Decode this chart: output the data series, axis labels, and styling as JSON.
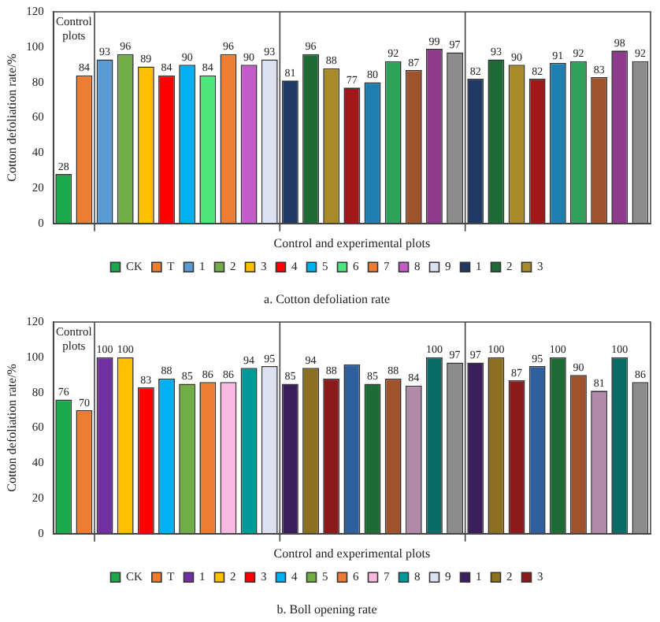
{
  "chart_data": [
    {
      "type": "bar",
      "title": "a. Cotton defoliation rate",
      "xlabel": "Control and experimental plots",
      "ylabel": "Cotton defoliation rate/%",
      "annotations": [
        "Control plots"
      ],
      "categories": [
        null,
        null,
        null,
        null,
        null,
        null,
        null,
        null,
        null,
        null,
        null,
        null,
        null,
        null,
        null,
        null,
        null,
        null,
        null,
        null,
        null,
        null,
        null,
        null,
        null,
        null,
        null,
        null,
        null
      ],
      "ylim": [
        0,
        120
      ],
      "yticks": [
        0,
        20,
        40,
        60,
        80,
        100,
        120
      ],
      "grid": false,
      "legend": "bottom",
      "data_labels": true,
      "series": [
        {
          "name": "CK",
          "color": "#1aa84a",
          "values": [
            28,
            null,
            null,
            null,
            null,
            null,
            null,
            null,
            null,
            null,
            null,
            null,
            null,
            null,
            null,
            null,
            null,
            null,
            null,
            null,
            null,
            null,
            null,
            null,
            null,
            null,
            null,
            null,
            null
          ]
        },
        {
          "name": "T",
          "color": "#ed7d31",
          "values": [
            null,
            84,
            null,
            null,
            null,
            null,
            null,
            null,
            null,
            null,
            null,
            null,
            null,
            null,
            null,
            null,
            null,
            null,
            null,
            null,
            null,
            null,
            null,
            null,
            null,
            null,
            null,
            null,
            null
          ]
        },
        {
          "name": "1",
          "color": "#5b9bd5",
          "values": [
            null,
            null,
            93,
            null,
            null,
            null,
            null,
            null,
            null,
            null,
            null,
            null,
            null,
            null,
            null,
            null,
            null,
            null,
            null,
            null,
            null,
            null,
            null,
            null,
            null,
            null,
            null,
            null,
            null
          ]
        },
        {
          "name": "2",
          "color": "#70ad47",
          "values": [
            null,
            null,
            null,
            96,
            null,
            null,
            null,
            null,
            null,
            null,
            null,
            null,
            null,
            null,
            null,
            null,
            null,
            null,
            null,
            null,
            null,
            null,
            null,
            null,
            null,
            null,
            null,
            null,
            null
          ]
        },
        {
          "name": "3",
          "color": "#ffc000",
          "values": [
            null,
            null,
            null,
            null,
            89,
            null,
            null,
            null,
            null,
            null,
            null,
            null,
            null,
            null,
            null,
            null,
            null,
            null,
            null,
            null,
            null,
            null,
            null,
            null,
            null,
            null,
            null,
            null,
            null
          ]
        },
        {
          "name": "4",
          "color": "#ff0000",
          "values": [
            null,
            null,
            null,
            null,
            null,
            84,
            null,
            null,
            null,
            null,
            null,
            null,
            null,
            null,
            null,
            null,
            null,
            null,
            null,
            null,
            null,
            null,
            null,
            null,
            null,
            null,
            null,
            null,
            null
          ]
        },
        {
          "name": "5",
          "color": "#00b0f0",
          "values": [
            null,
            null,
            null,
            null,
            null,
            null,
            90,
            null,
            null,
            null,
            null,
            null,
            null,
            null,
            null,
            null,
            null,
            null,
            null,
            null,
            null,
            null,
            null,
            null,
            null,
            null,
            null,
            null,
            null
          ]
        },
        {
          "name": "6",
          "color": "#4ce67a",
          "values": [
            null,
            null,
            null,
            null,
            null,
            null,
            null,
            84,
            null,
            null,
            null,
            null,
            null,
            null,
            null,
            null,
            null,
            null,
            null,
            null,
            null,
            null,
            null,
            null,
            null,
            null,
            null,
            null,
            null
          ]
        },
        {
          "name": "7",
          "color": "#ed7d31",
          "values": [
            null,
            null,
            null,
            null,
            null,
            null,
            null,
            null,
            96,
            null,
            null,
            null,
            null,
            null,
            null,
            null,
            null,
            null,
            null,
            null,
            null,
            null,
            null,
            null,
            null,
            null,
            null,
            null,
            null
          ]
        },
        {
          "name": "8",
          "color": "#c55ac9",
          "values": [
            null,
            null,
            null,
            null,
            null,
            null,
            null,
            null,
            null,
            90,
            null,
            null,
            null,
            null,
            null,
            null,
            null,
            null,
            null,
            null,
            null,
            null,
            null,
            null,
            null,
            null,
            null,
            null,
            null
          ]
        },
        {
          "name": "9",
          "color": "#dde0f0",
          "values": [
            null,
            null,
            null,
            null,
            null,
            null,
            null,
            null,
            null,
            null,
            93,
            null,
            null,
            null,
            null,
            null,
            null,
            null,
            null,
            null,
            null,
            null,
            null,
            null,
            null,
            null,
            null,
            null,
            null
          ]
        },
        {
          "name": "1",
          "color": "#1f3864",
          "values": [
            null,
            null,
            null,
            null,
            null,
            null,
            null,
            null,
            null,
            null,
            null,
            81,
            null,
            null,
            null,
            null,
            null,
            null,
            null,
            null,
            82,
            null,
            null,
            null,
            null,
            null,
            null,
            null,
            null
          ]
        },
        {
          "name": "2",
          "color": "#1e6b35",
          "values": [
            null,
            null,
            null,
            null,
            null,
            null,
            null,
            null,
            null,
            null,
            null,
            null,
            96,
            null,
            null,
            null,
            null,
            null,
            null,
            null,
            null,
            93,
            null,
            null,
            null,
            null,
            null,
            null,
            null
          ]
        },
        {
          "name": "3",
          "color": "#a88a28",
          "values": [
            null,
            null,
            null,
            null,
            null,
            null,
            null,
            null,
            null,
            null,
            null,
            null,
            null,
            88,
            null,
            null,
            null,
            null,
            null,
            null,
            null,
            null,
            90,
            null,
            null,
            null,
            null,
            null,
            null
          ]
        },
        {
          "color": "#a01818",
          "values": [
            null,
            null,
            null,
            null,
            null,
            null,
            null,
            null,
            null,
            null,
            null,
            null,
            null,
            null,
            77,
            null,
            null,
            null,
            null,
            null,
            null,
            null,
            null,
            82,
            null,
            null,
            null,
            null,
            null
          ]
        },
        {
          "color": "#1f7fb0",
          "values": [
            null,
            null,
            null,
            null,
            null,
            null,
            null,
            null,
            null,
            null,
            null,
            null,
            null,
            null,
            null,
            80,
            null,
            null,
            null,
            null,
            null,
            null,
            null,
            null,
            91,
            null,
            null,
            null,
            null
          ]
        },
        {
          "color": "#2ea25a",
          "values": [
            null,
            null,
            null,
            null,
            null,
            null,
            null,
            null,
            null,
            null,
            null,
            null,
            null,
            null,
            null,
            null,
            92,
            null,
            null,
            null,
            null,
            null,
            null,
            null,
            null,
            92,
            null,
            null,
            null
          ]
        },
        {
          "color": "#a0522d",
          "values": [
            null,
            null,
            null,
            null,
            null,
            null,
            null,
            null,
            null,
            null,
            null,
            null,
            null,
            null,
            null,
            null,
            null,
            87,
            null,
            null,
            null,
            null,
            null,
            null,
            null,
            null,
            83,
            null,
            null
          ]
        },
        {
          "color": "#8e3b8e",
          "values": [
            null,
            null,
            null,
            null,
            null,
            null,
            null,
            null,
            null,
            null,
            null,
            null,
            null,
            null,
            null,
            null,
            null,
            null,
            99,
            null,
            null,
            null,
            null,
            null,
            null,
            null,
            null,
            98,
            null
          ]
        },
        {
          "color": "#8c8c8c",
          "values": [
            null,
            null,
            null,
            null,
            null,
            null,
            null,
            null,
            null,
            null,
            null,
            null,
            null,
            null,
            null,
            null,
            null,
            null,
            null,
            97,
            null,
            null,
            null,
            null,
            null,
            null,
            null,
            null,
            92
          ]
        }
      ]
    },
    {
      "type": "bar",
      "title": "b. Boll opening rate",
      "xlabel": "Control and experimental plots",
      "ylabel": "Cotton defoliation rate/%",
      "annotations": [
        "Control plots"
      ],
      "categories": [
        null,
        null,
        null,
        null,
        null,
        null,
        null,
        null,
        null,
        null,
        null,
        null,
        null,
        null,
        null,
        null,
        null,
        null,
        null,
        null,
        null,
        null,
        null,
        null,
        null,
        null,
        null,
        null,
        null
      ],
      "ylim": [
        0,
        120
      ],
      "yticks": [
        0,
        20,
        40,
        60,
        80,
        100,
        120
      ],
      "grid": false,
      "legend": "bottom",
      "data_labels": true,
      "series": [
        {
          "name": "CK",
          "color": "#1aa84a",
          "values": [
            76,
            null,
            null,
            null,
            null,
            null,
            null,
            null,
            null,
            null,
            null,
            null,
            null,
            null,
            null,
            null,
            null,
            null,
            null,
            null,
            null,
            null,
            null,
            null,
            null,
            null,
            null,
            null,
            null
          ]
        },
        {
          "name": "T",
          "color": "#ed7d31",
          "values": [
            null,
            70,
            null,
            null,
            null,
            null,
            null,
            null,
            null,
            null,
            null,
            null,
            null,
            null,
            null,
            null,
            null,
            null,
            null,
            null,
            null,
            null,
            null,
            null,
            null,
            null,
            null,
            null,
            null
          ]
        },
        {
          "name": "1",
          "color": "#7030a0",
          "values": [
            null,
            null,
            100,
            null,
            null,
            null,
            null,
            null,
            null,
            null,
            null,
            null,
            null,
            null,
            null,
            null,
            null,
            null,
            null,
            null,
            null,
            null,
            null,
            null,
            null,
            null,
            null,
            null,
            null
          ]
        },
        {
          "name": "2",
          "color": "#ffc000",
          "values": [
            null,
            null,
            null,
            100,
            null,
            null,
            null,
            null,
            null,
            null,
            null,
            null,
            null,
            null,
            null,
            null,
            null,
            null,
            null,
            null,
            null,
            null,
            null,
            null,
            null,
            null,
            null,
            null,
            null
          ]
        },
        {
          "name": "3",
          "color": "#ff0000",
          "values": [
            null,
            null,
            null,
            null,
            83,
            null,
            null,
            null,
            null,
            null,
            null,
            null,
            null,
            null,
            null,
            null,
            null,
            null,
            null,
            null,
            null,
            null,
            null,
            null,
            null,
            null,
            null,
            null,
            null
          ]
        },
        {
          "name": "4",
          "color": "#00b0f0",
          "values": [
            null,
            null,
            null,
            null,
            null,
            88,
            null,
            null,
            null,
            null,
            null,
            null,
            null,
            null,
            null,
            null,
            null,
            null,
            null,
            null,
            null,
            null,
            null,
            null,
            null,
            null,
            null,
            null,
            null
          ]
        },
        {
          "name": "5",
          "color": "#70ad47",
          "values": [
            null,
            null,
            null,
            null,
            null,
            null,
            85,
            null,
            null,
            null,
            null,
            null,
            null,
            null,
            null,
            null,
            null,
            null,
            null,
            null,
            null,
            null,
            null,
            null,
            null,
            null,
            null,
            null,
            null
          ]
        },
        {
          "name": "6",
          "color": "#ed7d31",
          "values": [
            null,
            null,
            null,
            null,
            null,
            null,
            null,
            86,
            null,
            null,
            null,
            null,
            null,
            null,
            null,
            null,
            null,
            null,
            null,
            null,
            null,
            null,
            null,
            null,
            null,
            null,
            null,
            null,
            null
          ]
        },
        {
          "name": "7",
          "color": "#f8b8e0",
          "values": [
            null,
            null,
            null,
            null,
            null,
            null,
            null,
            null,
            86,
            null,
            null,
            null,
            null,
            null,
            null,
            null,
            null,
            null,
            null,
            null,
            null,
            null,
            null,
            null,
            null,
            null,
            null,
            null,
            null
          ]
        },
        {
          "name": "8",
          "color": "#009999",
          "values": [
            null,
            null,
            null,
            null,
            null,
            null,
            null,
            null,
            null,
            94,
            null,
            null,
            null,
            null,
            null,
            null,
            null,
            null,
            null,
            null,
            null,
            null,
            null,
            null,
            null,
            null,
            null,
            null,
            null
          ]
        },
        {
          "name": "9",
          "color": "#dde0f0",
          "values": [
            null,
            null,
            null,
            null,
            null,
            null,
            null,
            null,
            null,
            null,
            95,
            null,
            null,
            null,
            null,
            null,
            null,
            null,
            null,
            null,
            null,
            null,
            null,
            null,
            null,
            null,
            null,
            null,
            null
          ]
        },
        {
          "name": "1",
          "color": "#3a1f5c",
          "values": [
            null,
            null,
            null,
            null,
            null,
            null,
            null,
            null,
            null,
            null,
            null,
            85,
            null,
            null,
            null,
            null,
            null,
            null,
            null,
            null,
            97,
            null,
            null,
            null,
            null,
            null,
            null,
            null,
            null
          ]
        },
        {
          "name": "2",
          "color": "#8a7020",
          "values": [
            null,
            null,
            null,
            null,
            null,
            null,
            null,
            null,
            null,
            null,
            null,
            null,
            94,
            null,
            null,
            null,
            null,
            null,
            null,
            null,
            null,
            100,
            null,
            null,
            null,
            null,
            null,
            null,
            null
          ]
        },
        {
          "name": "3",
          "color": "#8b1a1a",
          "values": [
            null,
            null,
            null,
            null,
            null,
            null,
            null,
            null,
            null,
            null,
            null,
            null,
            null,
            88,
            null,
            null,
            null,
            null,
            null,
            null,
            null,
            null,
            87,
            null,
            null,
            null,
            null,
            null,
            null
          ]
        },
        {
          "color": "#2e5f9e",
          "values": [
            null,
            null,
            null,
            null,
            null,
            null,
            null,
            null,
            null,
            null,
            null,
            null,
            null,
            null,
            96,
            null,
            null,
            null,
            null,
            null,
            null,
            null,
            null,
            95,
            null,
            null,
            null,
            null,
            null
          ],
          "value_labels": [
            null,
            null,
            null,
            null,
            null,
            null,
            null,
            null,
            null,
            null,
            null,
            null,
            null,
            null,
            null,
            null,
            null,
            null,
            null,
            null,
            null,
            null,
            null,
            "95",
            null,
            null,
            null,
            null,
            null
          ]
        },
        {
          "color": "#1e6b35",
          "values": [
            null,
            null,
            null,
            null,
            null,
            null,
            null,
            null,
            null,
            null,
            null,
            null,
            null,
            null,
            null,
            85,
            null,
            null,
            null,
            null,
            null,
            null,
            null,
            null,
            100,
            null,
            null,
            null,
            null
          ]
        },
        {
          "color": "#a0522d",
          "values": [
            null,
            null,
            null,
            null,
            null,
            null,
            null,
            null,
            null,
            null,
            null,
            null,
            null,
            null,
            null,
            null,
            88,
            null,
            null,
            null,
            null,
            null,
            null,
            null,
            null,
            90,
            null,
            null,
            null
          ]
        },
        {
          "color": "#b08aa8",
          "values": [
            null,
            null,
            null,
            null,
            null,
            null,
            null,
            null,
            null,
            null,
            null,
            null,
            null,
            null,
            null,
            null,
            null,
            84,
            null,
            null,
            null,
            null,
            null,
            null,
            null,
            null,
            81,
            null,
            null
          ]
        },
        {
          "color": "#0b6b66",
          "values": [
            null,
            null,
            null,
            null,
            null,
            null,
            null,
            null,
            null,
            null,
            null,
            null,
            null,
            null,
            null,
            null,
            null,
            null,
            100,
            null,
            null,
            null,
            null,
            null,
            null,
            null,
            null,
            100,
            null
          ]
        },
        {
          "color": "#8c8c8c",
          "values": [
            null,
            null,
            null,
            null,
            null,
            null,
            null,
            null,
            null,
            null,
            null,
            null,
            null,
            null,
            null,
            null,
            null,
            null,
            null,
            97,
            null,
            null,
            null,
            null,
            null,
            null,
            null,
            null,
            86
          ]
        }
      ]
    }
  ]
}
